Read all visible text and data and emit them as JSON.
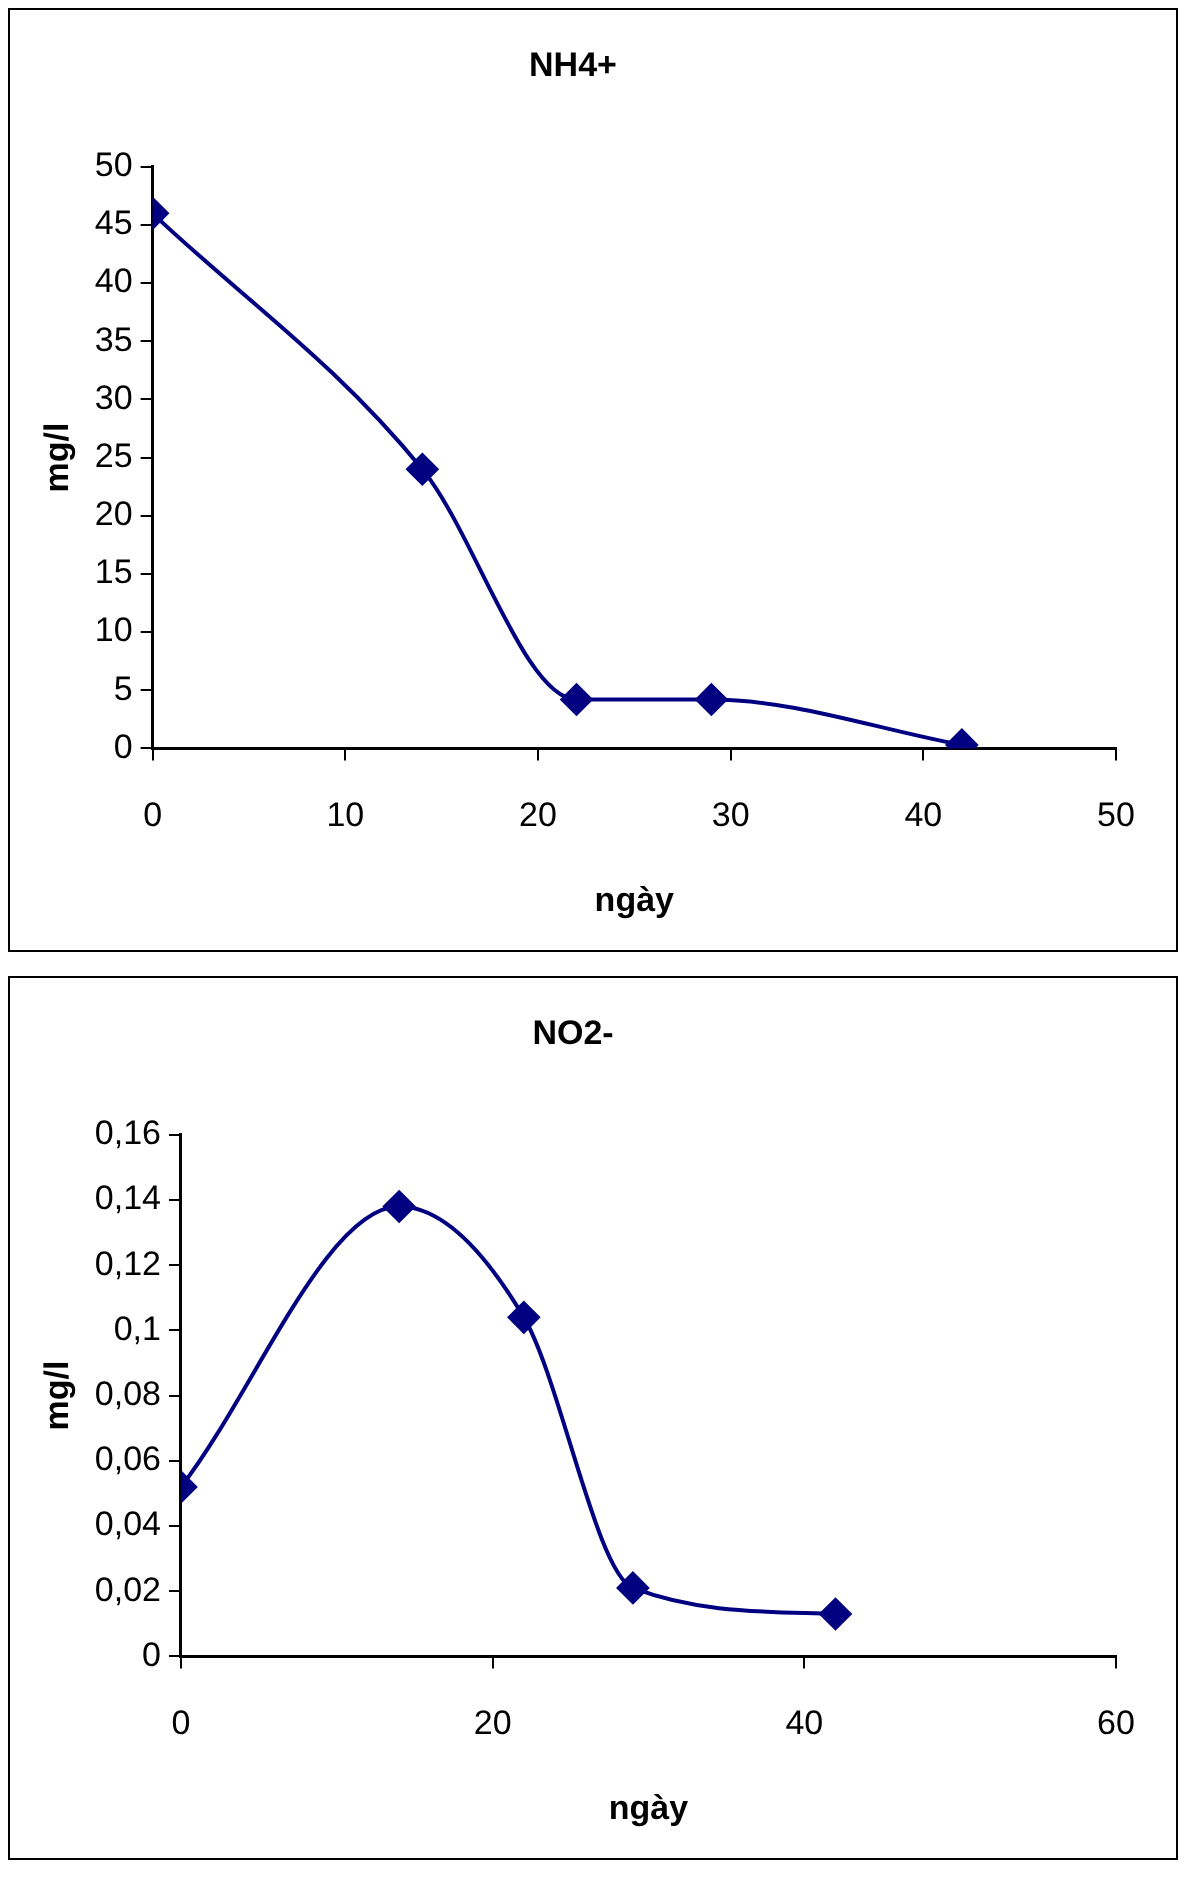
{
  "chart_data": [
    {
      "type": "line",
      "title": "NH4+",
      "xlabel": "ngày",
      "ylabel": "mg/l",
      "x": [
        0,
        14,
        22,
        29,
        42
      ],
      "series": [
        {
          "color": "#000080",
          "values": [
            46,
            24,
            4.2,
            4.2,
            0.3
          ]
        }
      ],
      "xlim": [
        0,
        50
      ],
      "xticks": [
        0,
        10,
        20,
        30,
        40,
        50
      ],
      "ylim": [
        0,
        50
      ],
      "yticks": [
        0,
        5,
        10,
        15,
        20,
        25,
        30,
        35,
        40,
        45,
        50
      ],
      "grid": false,
      "legend": false,
      "marker": "diamond",
      "line_style": "solid"
    },
    {
      "type": "line",
      "title": "NO2-",
      "xlabel": "ngày",
      "ylabel": "mg/l",
      "x": [
        0,
        14,
        22,
        29,
        42
      ],
      "series": [
        {
          "color": "#000080",
          "values": [
            0.052,
            0.138,
            0.104,
            0.021,
            0.013
          ]
        }
      ],
      "xlim": [
        0,
        60
      ],
      "xticks": [
        0,
        20,
        40,
        60
      ],
      "ylim": [
        0,
        0.16
      ],
      "yticks": [
        0,
        {
          "value": 0.02,
          "label": "0,02"
        },
        {
          "value": 0.04,
          "label": "0,04"
        },
        {
          "value": 0.06,
          "label": "0,06"
        },
        {
          "value": 0.08,
          "label": "0,08"
        },
        {
          "value": 0.1,
          "label": "0,1"
        },
        {
          "value": 0.12,
          "label": "0,12"
        },
        {
          "value": 0.14,
          "label": "0,14"
        },
        {
          "value": 0.16,
          "label": "0,16"
        }
      ],
      "grid": false,
      "legend": false,
      "marker": "diamond",
      "line_style": "solid"
    }
  ]
}
